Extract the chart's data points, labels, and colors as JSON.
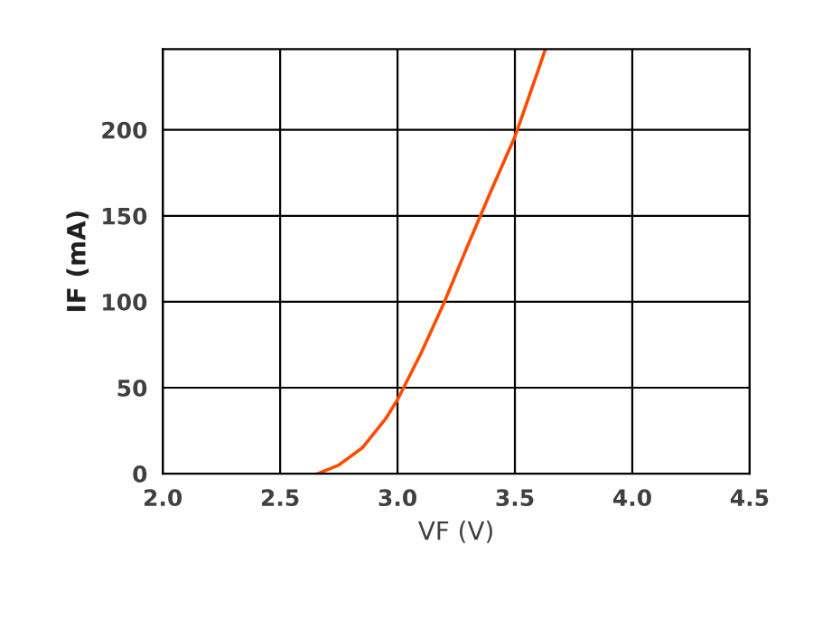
{
  "chart_data": {
    "type": "line",
    "xlabel": "VF (V)",
    "ylabel": "IF (mA)",
    "x": [
      2.66,
      2.75,
      2.85,
      2.95,
      3.0,
      3.1,
      3.2,
      3.3,
      3.4,
      3.5,
      3.6,
      3.63
    ],
    "series": [
      {
        "color": "#ff4b00",
        "values": [
          0,
          5,
          15,
          32,
          43,
          70,
          100,
          133,
          165,
          196,
          235,
          247
        ]
      }
    ],
    "xlim": [
      2.0,
      4.5
    ],
    "xticks": [
      {
        "value": 2.0,
        "label": "2.0"
      },
      {
        "value": 2.5,
        "label": "2.5"
      },
      {
        "value": 3.0,
        "label": "3.0"
      },
      {
        "value": 3.5,
        "label": "3.5"
      },
      {
        "value": 4.0,
        "label": "4.0"
      },
      {
        "value": 4.5,
        "label": "4.5"
      }
    ],
    "ylim": [
      0,
      247
    ],
    "yticks": [
      0,
      50,
      100,
      150,
      200
    ],
    "grid": true,
    "marker": "none",
    "line_style": "solid",
    "legend": false
  }
}
